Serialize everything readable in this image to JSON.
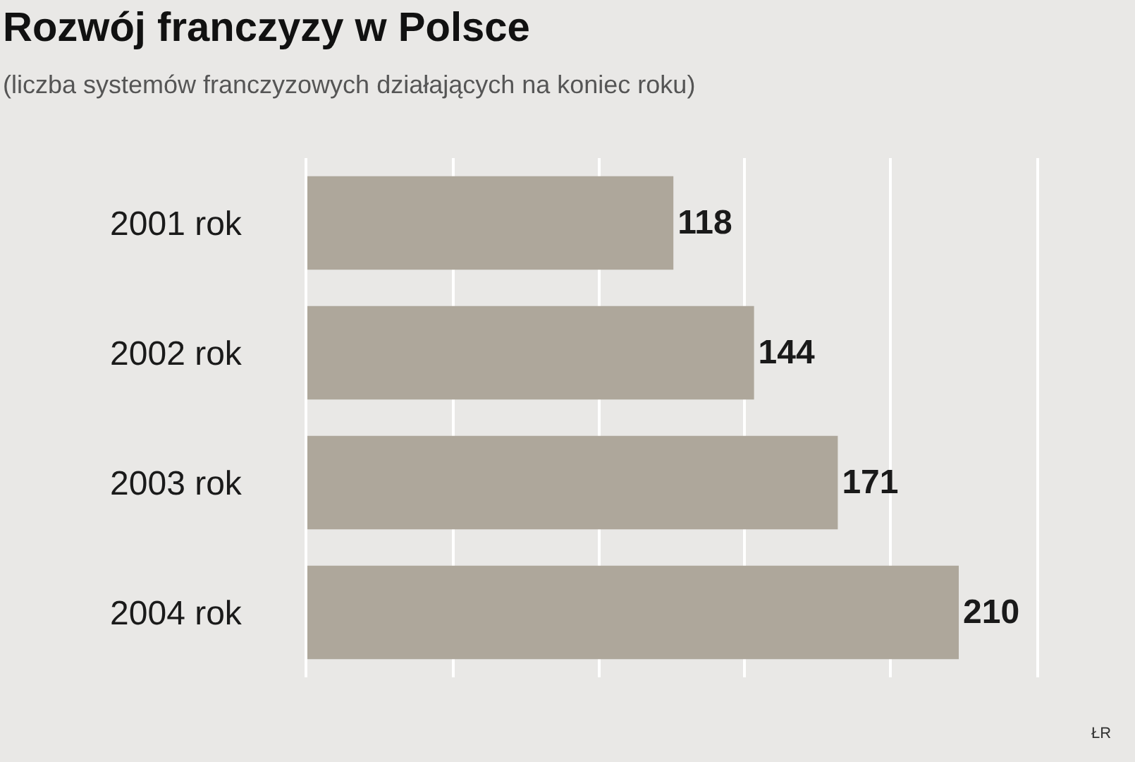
{
  "chart_data": {
    "type": "bar",
    "orientation": "horizontal",
    "title": "Rozwój franczyzy w Polsce",
    "subtitle": "(liczba systemów franczyzowych działających na koniec roku)",
    "categories": [
      "2001 rok",
      "2002 rok",
      "2003 rok",
      "2004 rok"
    ],
    "values": [
      118,
      144,
      171,
      210
    ],
    "color": "#aea79b",
    "data_labels": true,
    "xlim": [
      0,
      235
    ],
    "xticks": [
      {
        "value": 0,
        "label": null
      },
      {
        "value": 47,
        "label": null
      },
      {
        "value": 94,
        "label": null
      },
      {
        "value": 141,
        "label": null
      },
      {
        "value": 188,
        "label": null
      },
      {
        "value": 235,
        "label": null
      }
    ],
    "tick_labels": "y",
    "grid": "x",
    "annotations": [
      "ŁR"
    ]
  }
}
